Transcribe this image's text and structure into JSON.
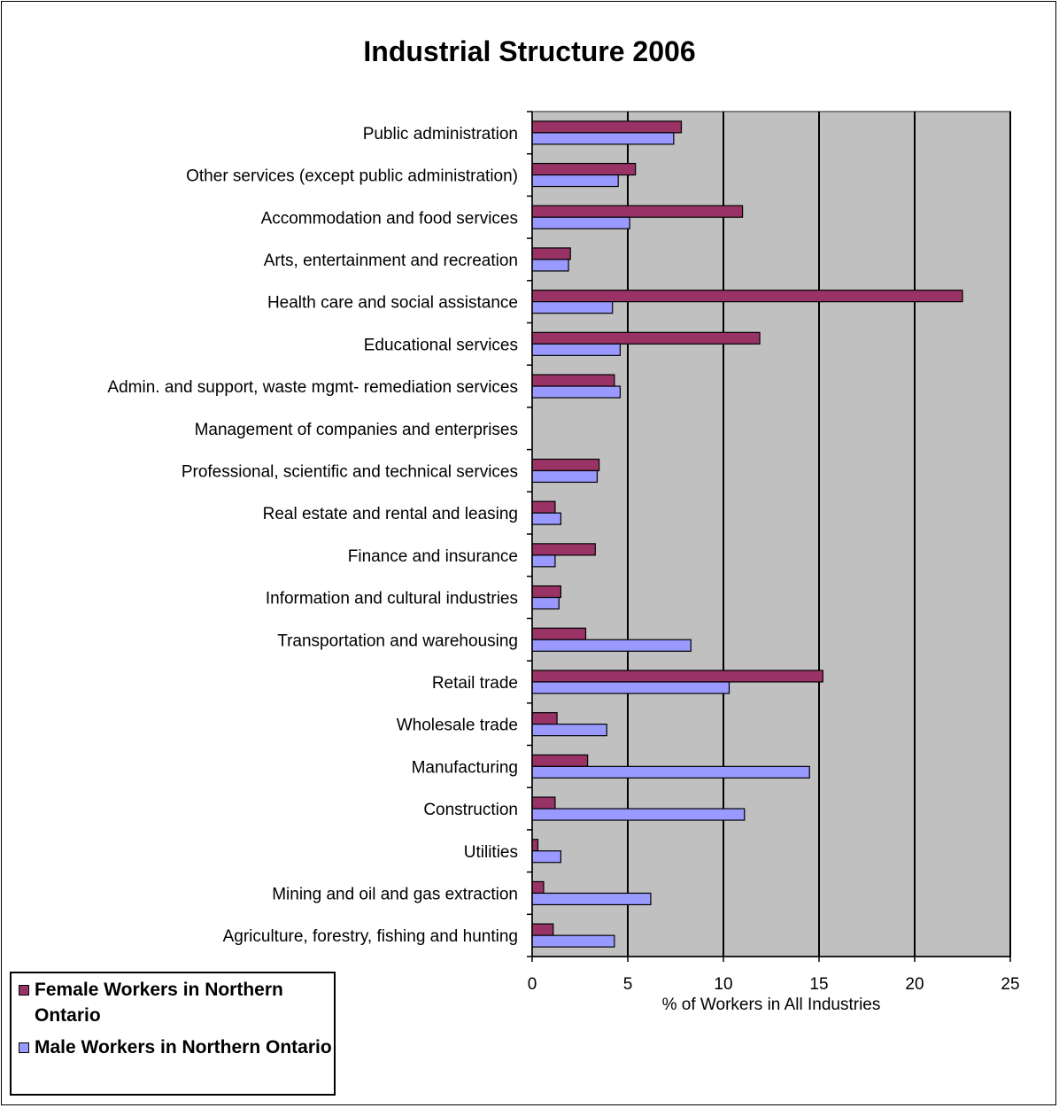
{
  "chart_data": {
    "type": "bar",
    "orientation": "horizontal",
    "title": "Industrial Structure 2006",
    "xlabel": "% of Workers in All Industries",
    "ylabel": "",
    "xlim": [
      0,
      25
    ],
    "xticks": [
      0,
      5,
      10,
      15,
      20,
      25
    ],
    "grid": "vertical major gridlines",
    "legend_position": "bottom-left",
    "plot_background": "#c0c0c0",
    "categories": [
      "Agriculture, forestry, fishing and hunting",
      "Mining and oil and gas extraction",
      "Utilities",
      "Construction",
      "Manufacturing",
      "Wholesale trade",
      "Retail trade",
      "Transportation and warehousing",
      "Information and cultural industries",
      "Finance and insurance",
      "Real estate and rental and leasing",
      "Professional, scientific and technical services",
      "Management of companies and enterprises",
      "Admin. and support, waste mgmt- remediation services",
      "Educational services",
      "Health care and social assistance",
      "Arts, entertainment and recreation",
      "Accommodation and food services",
      "Other services (except public administration)",
      "Public administration"
    ],
    "series": [
      {
        "name": "Female Workers in Northern Ontario",
        "color": "#993366",
        "values": [
          1.1,
          0.6,
          0.3,
          1.2,
          2.9,
          1.3,
          15.2,
          2.8,
          1.5,
          3.3,
          1.2,
          3.5,
          0,
          4.3,
          11.9,
          22.5,
          2.0,
          11.0,
          5.4,
          7.8
        ]
      },
      {
        "name": "Male Workers in Northern Ontario",
        "color": "#9999ff",
        "values": [
          4.3,
          6.2,
          1.5,
          11.1,
          14.5,
          3.9,
          10.3,
          8.3,
          1.4,
          1.2,
          1.5,
          3.4,
          0,
          4.6,
          4.6,
          4.2,
          1.9,
          5.1,
          4.5,
          7.4
        ]
      }
    ]
  }
}
